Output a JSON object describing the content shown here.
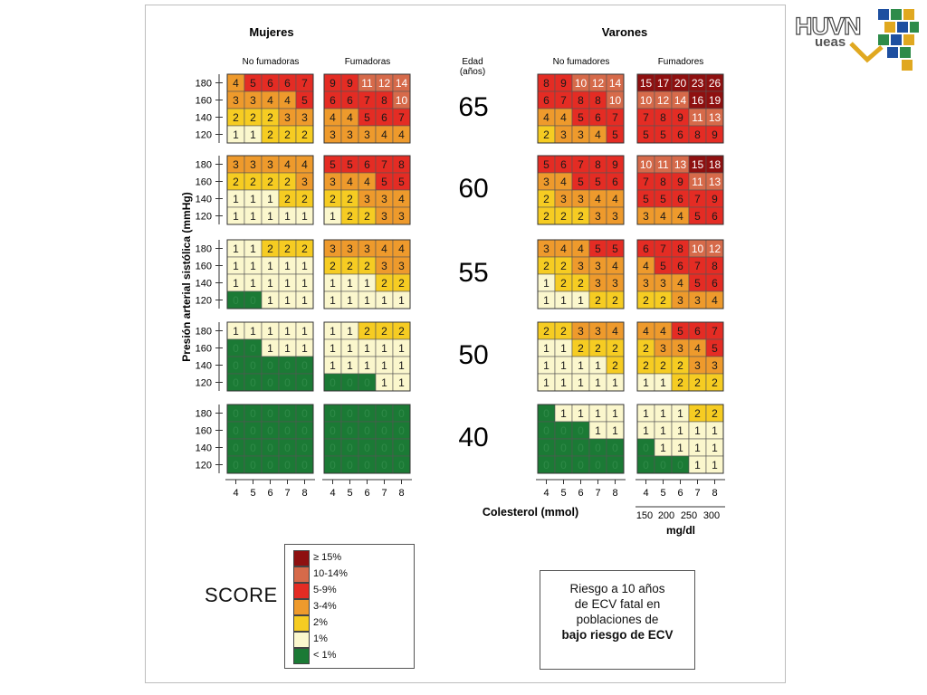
{
  "logo": {
    "text": "HUVN",
    "sub": "ueas"
  },
  "chart_data": {
    "type": "heatmap",
    "groups": [
      {
        "title": "Mujeres",
        "panels": [
          {
            "title": "No fumadoras"
          },
          {
            "title": "Fumadoras"
          }
        ]
      },
      {
        "title": "Varones",
        "panels": [
          {
            "title": "No fumadores"
          },
          {
            "title": "Fumadores"
          }
        ]
      }
    ],
    "age_header": "Edad",
    "age_header_unit": "(años)",
    "ages": [
      "65",
      "60",
      "55",
      "50",
      "40"
    ],
    "ylabel": "Presión arterial sistólica (mmHg)",
    "y_ticks": [
      "180",
      "160",
      "140",
      "120"
    ],
    "x_ticks": [
      "4",
      "5",
      "6",
      "7",
      "8"
    ],
    "xlabel": "Colesterol (mmol)",
    "x2_ticks": [
      "150",
      "200",
      "250",
      "300"
    ],
    "x2_label": "mg/dl",
    "values": {
      "65": [
        [
          [
            4,
            5,
            6,
            6,
            7
          ],
          [
            3,
            3,
            4,
            4,
            5
          ],
          [
            2,
            2,
            2,
            3,
            3
          ],
          [
            1,
            1,
            2,
            2,
            2
          ]
        ],
        [
          [
            9,
            9,
            11,
            12,
            14
          ],
          [
            6,
            6,
            7,
            8,
            10
          ],
          [
            4,
            4,
            5,
            6,
            7
          ],
          [
            3,
            3,
            3,
            4,
            4
          ]
        ],
        [
          [
            8,
            9,
            10,
            12,
            14
          ],
          [
            6,
            7,
            8,
            8,
            10
          ],
          [
            4,
            4,
            5,
            6,
            7
          ],
          [
            2,
            3,
            3,
            4,
            5
          ]
        ],
        [
          [
            15,
            17,
            20,
            23,
            26
          ],
          [
            10,
            12,
            14,
            16,
            19
          ],
          [
            7,
            8,
            9,
            11,
            13
          ],
          [
            5,
            5,
            6,
            8,
            9
          ]
        ]
      ],
      "60": [
        [
          [
            3,
            3,
            3,
            4,
            4
          ],
          [
            2,
            2,
            2,
            2,
            3
          ],
          [
            1,
            1,
            1,
            2,
            2
          ],
          [
            1,
            1,
            1,
            1,
            1
          ]
        ],
        [
          [
            5,
            5,
            6,
            7,
            8
          ],
          [
            3,
            4,
            4,
            5,
            5
          ],
          [
            2,
            2,
            3,
            3,
            4
          ],
          [
            1,
            2,
            2,
            3,
            3
          ]
        ],
        [
          [
            5,
            6,
            7,
            8,
            9
          ],
          [
            3,
            4,
            5,
            5,
            6
          ],
          [
            2,
            3,
            3,
            4,
            4
          ],
          [
            2,
            2,
            2,
            3,
            3
          ]
        ],
        [
          [
            10,
            11,
            13,
            15,
            18
          ],
          [
            7,
            8,
            9,
            11,
            13
          ],
          [
            5,
            5,
            6,
            7,
            9
          ],
          [
            3,
            4,
            4,
            5,
            6
          ]
        ]
      ],
      "55": [
        [
          [
            1,
            1,
            2,
            2,
            2
          ],
          [
            1,
            1,
            1,
            1,
            1
          ],
          [
            1,
            1,
            1,
            1,
            1
          ],
          [
            0,
            0,
            1,
            1,
            1
          ]
        ],
        [
          [
            3,
            3,
            3,
            4,
            4
          ],
          [
            2,
            2,
            2,
            3,
            3
          ],
          [
            1,
            1,
            1,
            2,
            2
          ],
          [
            1,
            1,
            1,
            1,
            1
          ]
        ],
        [
          [
            3,
            4,
            4,
            5,
            5
          ],
          [
            2,
            2,
            3,
            3,
            4
          ],
          [
            1,
            2,
            2,
            3,
            3
          ],
          [
            1,
            1,
            1,
            2,
            2
          ]
        ],
        [
          [
            6,
            7,
            8,
            10,
            12
          ],
          [
            4,
            5,
            6,
            7,
            8
          ],
          [
            3,
            3,
            4,
            5,
            6
          ],
          [
            2,
            2,
            3,
            3,
            4
          ]
        ]
      ],
      "50": [
        [
          [
            1,
            1,
            1,
            1,
            1
          ],
          [
            0,
            0,
            1,
            1,
            1
          ],
          [
            0,
            0,
            0,
            0,
            0
          ],
          [
            0,
            0,
            0,
            0,
            0
          ]
        ],
        [
          [
            1,
            1,
            2,
            2,
            2
          ],
          [
            1,
            1,
            1,
            1,
            1
          ],
          [
            1,
            1,
            1,
            1,
            1
          ],
          [
            0,
            0,
            0,
            1,
            1
          ]
        ],
        [
          [
            2,
            2,
            3,
            3,
            4
          ],
          [
            1,
            1,
            2,
            2,
            2
          ],
          [
            1,
            1,
            1,
            1,
            2
          ],
          [
            1,
            1,
            1,
            1,
            1
          ]
        ],
        [
          [
            4,
            4,
            5,
            6,
            7
          ],
          [
            2,
            3,
            3,
            4,
            5
          ],
          [
            2,
            2,
            2,
            3,
            3
          ],
          [
            1,
            1,
            2,
            2,
            2
          ]
        ]
      ],
      "40": [
        [
          [
            0,
            0,
            0,
            0,
            0
          ],
          [
            0,
            0,
            0,
            0,
            0
          ],
          [
            0,
            0,
            0,
            0,
            0
          ],
          [
            0,
            0,
            0,
            0,
            0
          ]
        ],
        [
          [
            0,
            0,
            0,
            0,
            0
          ],
          [
            0,
            0,
            0,
            0,
            0
          ],
          [
            0,
            0,
            0,
            0,
            0
          ],
          [
            0,
            0,
            0,
            0,
            0
          ]
        ],
        [
          [
            0,
            1,
            1,
            1,
            1
          ],
          [
            0,
            0,
            0,
            1,
            1
          ],
          [
            0,
            0,
            0,
            0,
            0
          ],
          [
            0,
            0,
            0,
            0,
            0
          ]
        ],
        [
          [
            1,
            1,
            1,
            2,
            2
          ],
          [
            1,
            1,
            1,
            1,
            1
          ],
          [
            0,
            1,
            1,
            1,
            1
          ],
          [
            0,
            0,
            0,
            1,
            1
          ]
        ]
      ]
    },
    "legend_title": "SCORE",
    "legend": [
      {
        "label": "≥ 15%",
        "color": "#8e1010"
      },
      {
        "label": "10-14%",
        "color": "#d66a4a"
      },
      {
        "label": "5-9%",
        "color": "#e42c24"
      },
      {
        "label": "3-4%",
        "color": "#ee9a2c"
      },
      {
        "label": "2%",
        "color": "#f6cc22"
      },
      {
        "label": "1%",
        "color": "#fbf7cd"
      },
      {
        "label": "< 1%",
        "color": "#1b7a35"
      }
    ]
  },
  "note": {
    "line1": "Riesgo a 10 años",
    "line2": "de ECV fatal en",
    "line3": "poblaciones de",
    "line4": "bajo riesgo de ECV"
  }
}
